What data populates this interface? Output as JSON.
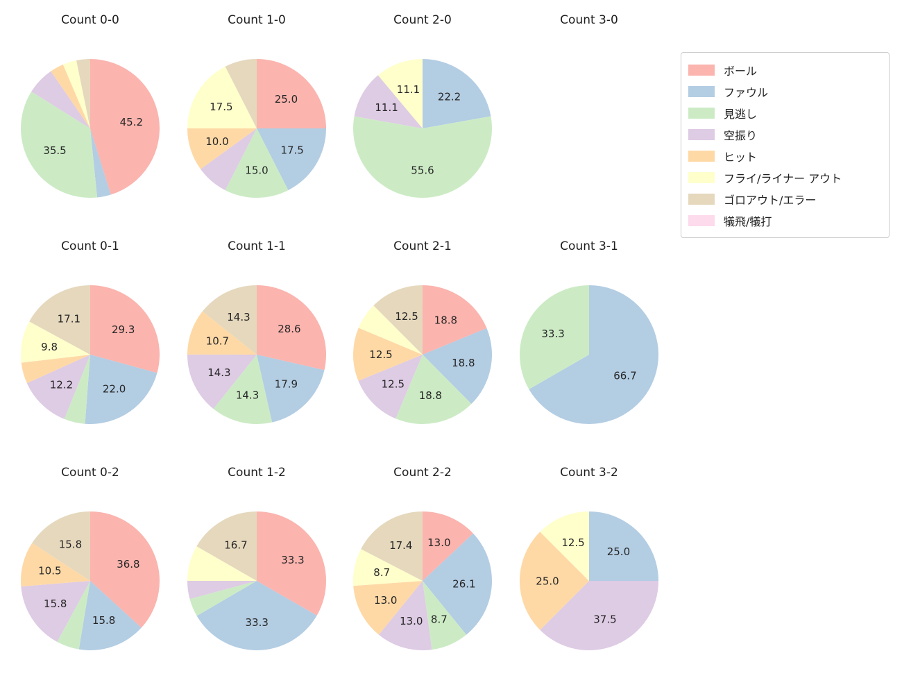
{
  "colors": {
    "ボール": "#fbb4ae",
    "ファウル": "#b3cde3",
    "見逃し": "#ccebc5",
    "空振り": "#decbe4",
    "ヒット": "#fed9a6",
    "フライ/ライナー アウト": "#ffffcc",
    "ゴロアウト/エラー": "#e5d8bd",
    "犠飛/犠打": "#fddaec"
  },
  "legend": {
    "items": [
      "ボール",
      "ファウル",
      "見逃し",
      "空振り",
      "ヒット",
      "フライ/ライナー アウト",
      "ゴロアウト/エラー",
      "犠飛/犠打"
    ]
  },
  "chart_data": [
    {
      "type": "pie",
      "title": "Count 0-0",
      "slices": [
        {
          "label": "ボール",
          "value": 45.2,
          "show_label": true
        },
        {
          "label": "ファウル",
          "value": 3.2,
          "show_label": false
        },
        {
          "label": "見逃し",
          "value": 35.5,
          "show_label": true
        },
        {
          "label": "空振り",
          "value": 6.5,
          "show_label": false
        },
        {
          "label": "ヒット",
          "value": 3.2,
          "show_label": false
        },
        {
          "label": "フライ/ライナー アウト",
          "value": 3.2,
          "show_label": false
        },
        {
          "label": "ゴロアウト/エラー",
          "value": 3.2,
          "show_label": false
        }
      ]
    },
    {
      "type": "pie",
      "title": "Count 1-0",
      "slices": [
        {
          "label": "ボール",
          "value": 25.0,
          "show_label": true
        },
        {
          "label": "ファウル",
          "value": 17.5,
          "show_label": true
        },
        {
          "label": "見逃し",
          "value": 15.0,
          "show_label": true
        },
        {
          "label": "空振り",
          "value": 7.5,
          "show_label": false
        },
        {
          "label": "ヒット",
          "value": 10.0,
          "show_label": true
        },
        {
          "label": "フライ/ライナー アウト",
          "value": 17.5,
          "show_label": true
        },
        {
          "label": "ゴロアウト/エラー",
          "value": 7.5,
          "show_label": false
        }
      ]
    },
    {
      "type": "pie",
      "title": "Count 2-0",
      "slices": [
        {
          "label": "ファウル",
          "value": 22.2,
          "show_label": true
        },
        {
          "label": "見逃し",
          "value": 55.6,
          "show_label": true
        },
        {
          "label": "空振り",
          "value": 11.1,
          "show_label": true
        },
        {
          "label": "フライ/ライナー アウト",
          "value": 11.1,
          "show_label": true
        }
      ]
    },
    {
      "type": "pie",
      "title": "Count 3-0",
      "slices": []
    },
    {
      "type": "pie",
      "title": "Count 0-1",
      "slices": [
        {
          "label": "ボール",
          "value": 29.3,
          "show_label": true
        },
        {
          "label": "ファウル",
          "value": 22.0,
          "show_label": true
        },
        {
          "label": "見逃し",
          "value": 4.9,
          "show_label": false
        },
        {
          "label": "空振り",
          "value": 12.2,
          "show_label": true
        },
        {
          "label": "ヒット",
          "value": 4.9,
          "show_label": false
        },
        {
          "label": "フライ/ライナー アウト",
          "value": 9.8,
          "show_label": true
        },
        {
          "label": "ゴロアウト/エラー",
          "value": 17.1,
          "show_label": true
        }
      ]
    },
    {
      "type": "pie",
      "title": "Count 1-1",
      "slices": [
        {
          "label": "ボール",
          "value": 28.6,
          "show_label": true
        },
        {
          "label": "ファウル",
          "value": 17.9,
          "show_label": true
        },
        {
          "label": "見逃し",
          "value": 14.3,
          "show_label": true
        },
        {
          "label": "空振り",
          "value": 14.3,
          "show_label": true
        },
        {
          "label": "ヒット",
          "value": 10.7,
          "show_label": true
        },
        {
          "label": "ゴロアウト/エラー",
          "value": 14.3,
          "show_label": true
        }
      ]
    },
    {
      "type": "pie",
      "title": "Count 2-1",
      "slices": [
        {
          "label": "ボール",
          "value": 18.8,
          "show_label": true
        },
        {
          "label": "ファウル",
          "value": 18.8,
          "show_label": true
        },
        {
          "label": "見逃し",
          "value": 18.8,
          "show_label": true
        },
        {
          "label": "空振り",
          "value": 12.5,
          "show_label": true
        },
        {
          "label": "ヒット",
          "value": 12.5,
          "show_label": true
        },
        {
          "label": "フライ/ライナー アウト",
          "value": 6.2,
          "show_label": false
        },
        {
          "label": "ゴロアウト/エラー",
          "value": 12.5,
          "show_label": true
        }
      ]
    },
    {
      "type": "pie",
      "title": "Count 3-1",
      "slices": [
        {
          "label": "ファウル",
          "value": 66.7,
          "show_label": true
        },
        {
          "label": "見逃し",
          "value": 33.3,
          "show_label": true
        }
      ]
    },
    {
      "type": "pie",
      "title": "Count 0-2",
      "slices": [
        {
          "label": "ボール",
          "value": 36.8,
          "show_label": true
        },
        {
          "label": "ファウル",
          "value": 15.8,
          "show_label": true
        },
        {
          "label": "見逃し",
          "value": 5.3,
          "show_label": false
        },
        {
          "label": "空振り",
          "value": 15.8,
          "show_label": true
        },
        {
          "label": "ヒット",
          "value": 10.5,
          "show_label": true
        },
        {
          "label": "ゴロアウト/エラー",
          "value": 15.8,
          "show_label": true
        }
      ]
    },
    {
      "type": "pie",
      "title": "Count 1-2",
      "slices": [
        {
          "label": "ボール",
          "value": 33.3,
          "show_label": true
        },
        {
          "label": "ファウル",
          "value": 33.3,
          "show_label": true
        },
        {
          "label": "見逃し",
          "value": 4.2,
          "show_label": false
        },
        {
          "label": "空振り",
          "value": 4.2,
          "show_label": false
        },
        {
          "label": "フライ/ライナー アウト",
          "value": 8.3,
          "show_label": false
        },
        {
          "label": "ゴロアウト/エラー",
          "value": 16.7,
          "show_label": true
        }
      ]
    },
    {
      "type": "pie",
      "title": "Count 2-2",
      "slices": [
        {
          "label": "ボール",
          "value": 13.0,
          "show_label": true
        },
        {
          "label": "ファウル",
          "value": 26.1,
          "show_label": true
        },
        {
          "label": "見逃し",
          "value": 8.7,
          "show_label": true
        },
        {
          "label": "空振り",
          "value": 13.0,
          "show_label": true
        },
        {
          "label": "ヒット",
          "value": 13.0,
          "show_label": true
        },
        {
          "label": "フライ/ライナー アウト",
          "value": 8.7,
          "show_label": true
        },
        {
          "label": "ゴロアウト/エラー",
          "value": 17.4,
          "show_label": true
        }
      ]
    },
    {
      "type": "pie",
      "title": "Count 3-2",
      "slices": [
        {
          "label": "ファウル",
          "value": 25.0,
          "show_label": true
        },
        {
          "label": "空振り",
          "value": 37.5,
          "show_label": true
        },
        {
          "label": "ヒット",
          "value": 25.0,
          "show_label": true
        },
        {
          "label": "フライ/ライナー アウト",
          "value": 12.5,
          "show_label": true
        }
      ]
    }
  ]
}
